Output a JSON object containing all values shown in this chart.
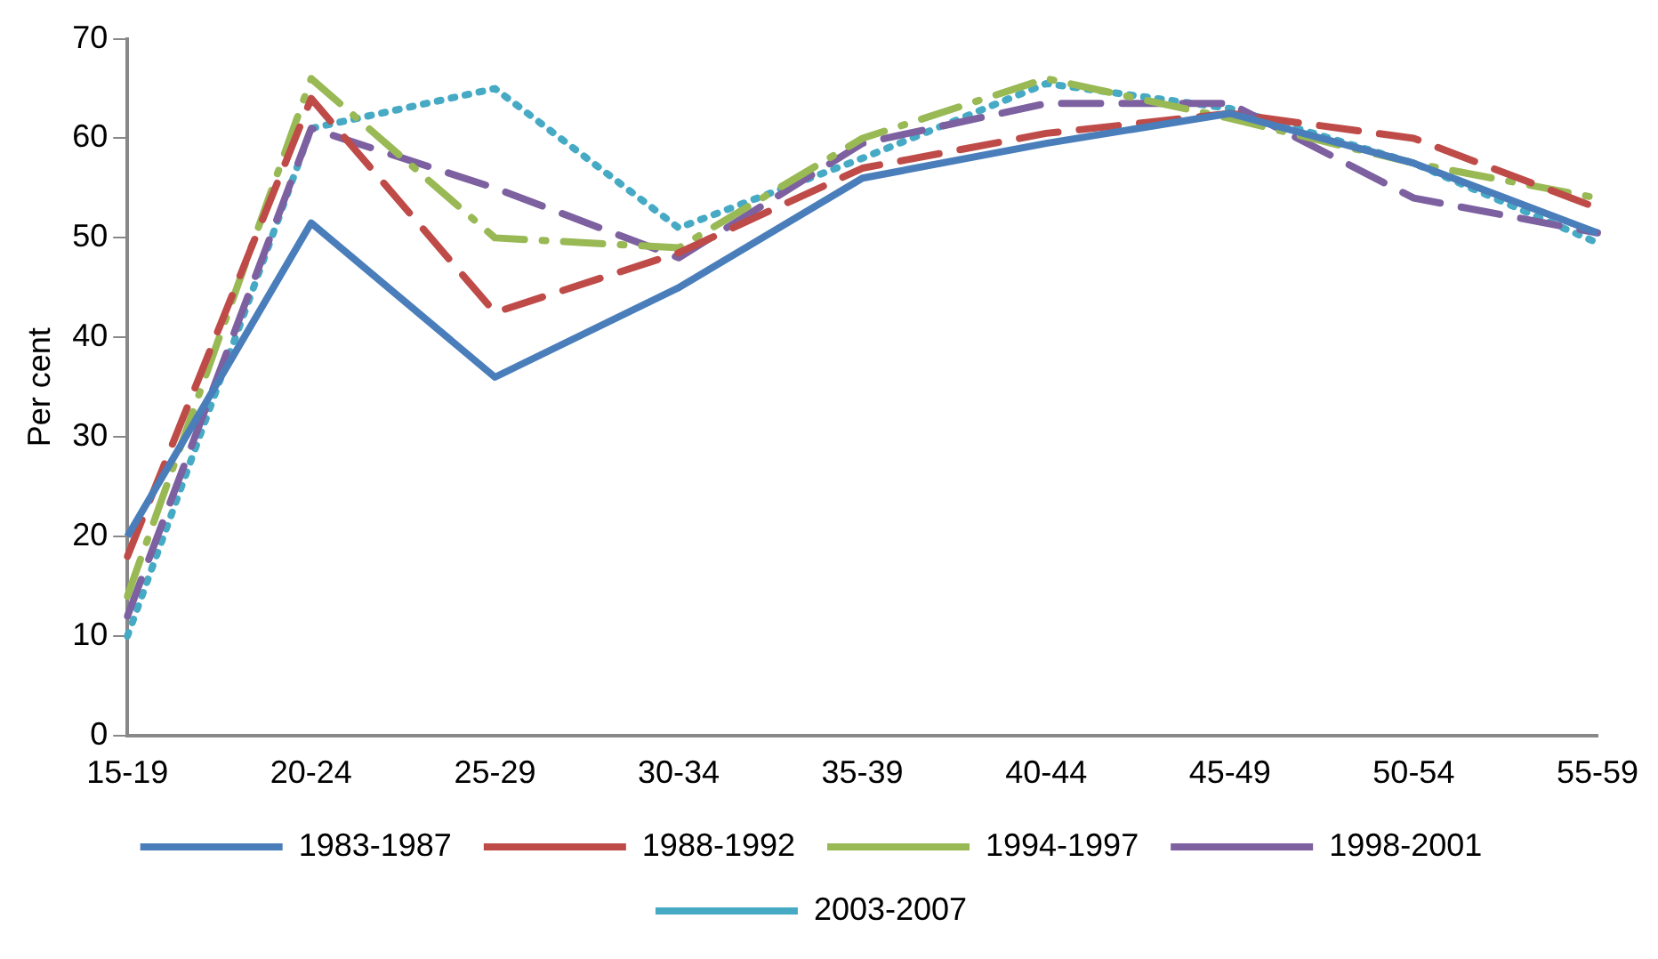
{
  "chart_data": {
    "type": "line",
    "ylabel": "Per cent",
    "categories": [
      "15-19",
      "20-24",
      "25-29",
      "30-34",
      "35-39",
      "40-44",
      "45-49",
      "50-54",
      "55-59"
    ],
    "ylim": [
      0,
      70
    ],
    "yticks": [
      0,
      10,
      20,
      30,
      40,
      50,
      60,
      70
    ],
    "grid": false,
    "legend": "bottom",
    "marker": "none",
    "series": [
      {
        "name": "1983-1987",
        "color": "#4a7ebb",
        "line_style": "solid",
        "values": [
          20,
          51.5,
          36,
          45,
          56,
          59.5,
          62.5,
          57.5,
          50.5
        ]
      },
      {
        "name": "1988-1992",
        "color": "#be4b48",
        "line_style": "dashed",
        "values": [
          18,
          64,
          42.5,
          48.5,
          57,
          60.5,
          62.5,
          60,
          53
        ]
      },
      {
        "name": "1994-1997",
        "color": "#98b954",
        "line_style": "dashdot",
        "values": [
          14,
          66,
          50,
          49,
          60,
          66,
          62,
          57.5,
          54
        ]
      },
      {
        "name": "1998-2001",
        "color": "#7d60a0",
        "line_style": "dashed",
        "values": [
          12,
          61,
          55,
          48,
          59.5,
          63.5,
          63.5,
          54,
          50.5
        ]
      },
      {
        "name": "2003-2007",
        "color": "#46aac5",
        "line_style": "dotted",
        "values": [
          10,
          61,
          65,
          51,
          58,
          65.5,
          63,
          57.5,
          49.5
        ]
      }
    ]
  }
}
